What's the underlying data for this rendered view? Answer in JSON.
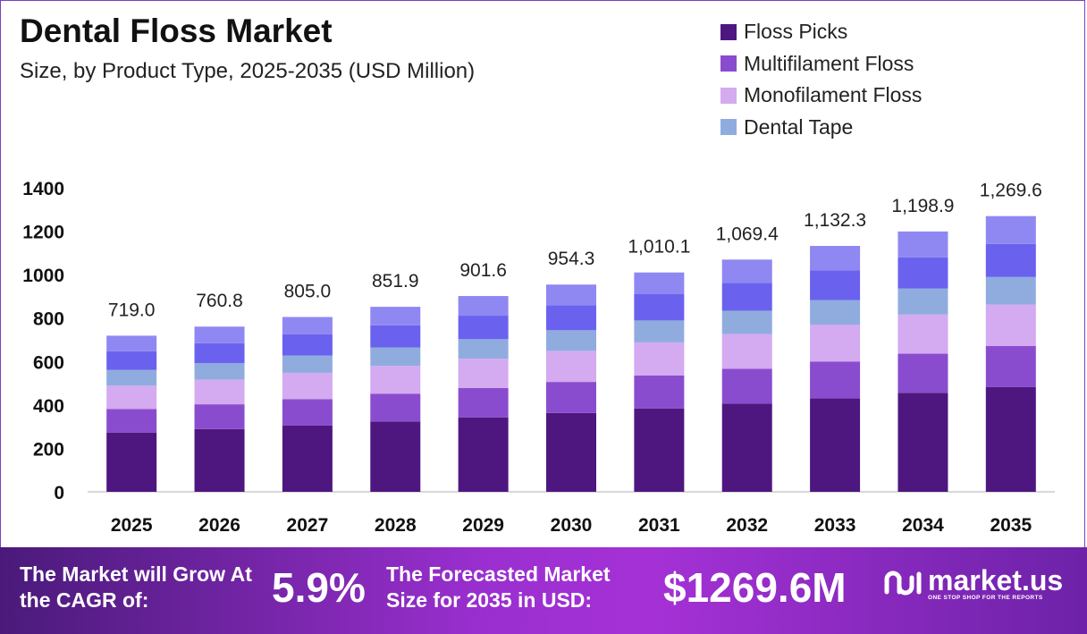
{
  "header": {
    "title": "Dental Floss Market",
    "subtitle": "Size, by Product Type, 2025-2035 (USD Million)"
  },
  "legend": [
    {
      "label": "Floss Picks",
      "color": "#4e1780"
    },
    {
      "label": "Multifilament Floss",
      "color": "#8a4cce"
    },
    {
      "label": "Monofilament Floss",
      "color": "#d4aaf0"
    },
    {
      "label": "Dental Tape",
      "color": "#90acdf"
    }
  ],
  "chart_data": {
    "type": "bar",
    "stacked": true,
    "categories": [
      "2025",
      "2026",
      "2027",
      "2028",
      "2029",
      "2030",
      "2031",
      "2032",
      "2033",
      "2034",
      "2035"
    ],
    "series": [
      {
        "name": "Floss Picks",
        "color": "#4e1780",
        "values": [
          273,
          289,
          306,
          324,
          343,
          363,
          384,
          406,
          430,
          456,
          482
        ]
      },
      {
        "name": "Multifilament Floss",
        "color": "#8a4cce",
        "values": [
          108,
          114,
          121,
          128,
          135,
          143,
          152,
          161,
          170,
          180,
          190
        ]
      },
      {
        "name": "Monofilament Floss",
        "color": "#d4aaf0",
        "values": [
          108,
          114,
          121,
          128,
          135,
          143,
          152,
          160,
          170,
          180,
          190
        ]
      },
      {
        "name": "Dental Tape",
        "color": "#90acdf",
        "values": [
          72,
          76,
          80,
          85,
          90,
          95,
          101,
          107,
          113,
          120,
          127
        ]
      },
      {
        "name": "",
        "color": "#6a62ee",
        "values": [
          86,
          91,
          97,
          102,
          108,
          115,
          121,
          128,
          136,
          144,
          152
        ]
      },
      {
        "name": "",
        "color": "#8f88f2",
        "values": [
          72,
          76.8,
          80,
          84.9,
          90.6,
          95.3,
          100.1,
          107.4,
          113.3,
          118.9,
          128.6
        ]
      }
    ],
    "totals": [
      719.0,
      760.8,
      805.0,
      851.9,
      901.6,
      954.3,
      1010.1,
      1069.4,
      1132.3,
      1198.9,
      1269.6
    ],
    "total_labels": [
      "719.0",
      "760.8",
      "805.0",
      "851.9",
      "901.6",
      "954.3",
      "1,010.1",
      "1,069.4",
      "1,132.3",
      "1,198.9",
      "1,269.6"
    ],
    "y_ticks": [
      "0",
      "200",
      "400",
      "600",
      "800",
      "1000",
      "1200",
      "1400"
    ],
    "ylim": [
      0,
      1400
    ],
    "grid": false,
    "legend_position": "top-right"
  },
  "banner": {
    "cagr_label": "The Market will Grow At the CAGR of:",
    "cagr_value": "5.9%",
    "forecast_label": "The Forecasted Market Size for 2035 in USD:",
    "forecast_value": "$1269.6M"
  },
  "brand": {
    "name": "market.us",
    "tagline": "ONE STOP SHOP FOR THE REPORTS"
  }
}
